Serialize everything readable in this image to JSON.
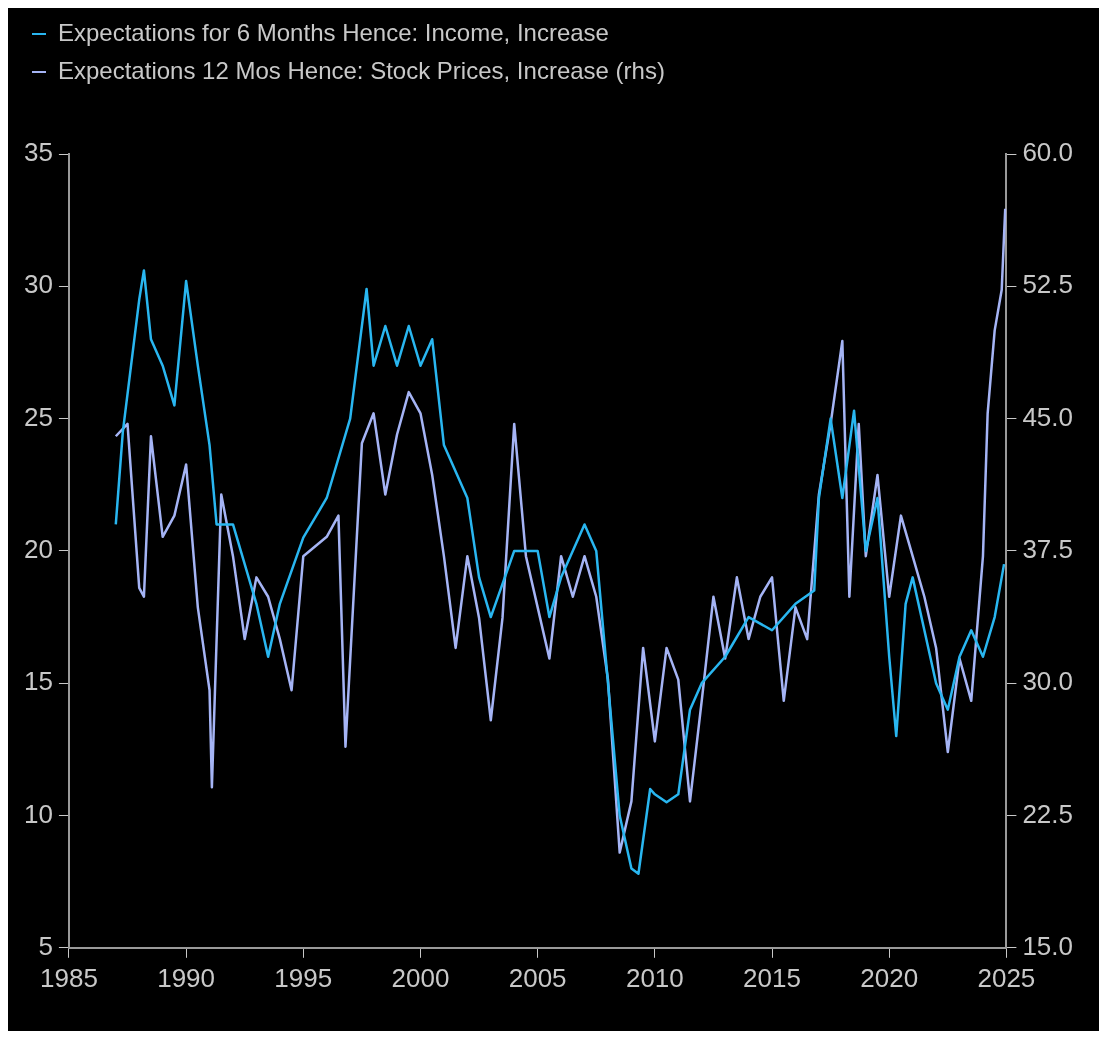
{
  "chart_data": {
    "type": "line",
    "xlim": [
      1985,
      2025
    ],
    "xticks": [
      1985,
      1990,
      1995,
      2000,
      2005,
      2010,
      2015,
      2020,
      2025
    ],
    "ylim": [
      5,
      35
    ],
    "yticks": [
      5,
      10,
      15,
      20,
      25,
      30,
      35
    ],
    "y2lim": [
      15,
      60
    ],
    "y2ticks": [
      {
        "value": 15,
        "label": "15.0"
      },
      {
        "value": 22.5,
        "label": "22.5"
      },
      {
        "value": 30,
        "label": "30.0"
      },
      {
        "value": 37.5,
        "label": "37.5"
      },
      {
        "value": 45,
        "label": "45.0"
      },
      {
        "value": 52.5,
        "label": "52.5"
      },
      {
        "value": 60,
        "label": "60.0"
      }
    ],
    "grid": false,
    "legend": "top left",
    "marker": "none",
    "line_style": "solid",
    "series": [
      {
        "name": "Expectations for 6 Months Hence: Income, Increase",
        "color": "#29b6f0",
        "x": [
          1987,
          1987.3,
          1988,
          1988.2,
          1988.5,
          1989,
          1989.5,
          1990,
          1990.5,
          1991,
          1991.3,
          1992,
          1993,
          1993.5,
          1994,
          1995,
          1996,
          1997,
          1997.7,
          1998,
          1998.5,
          1999,
          1999.5,
          2000,
          2000.5,
          2001,
          2002,
          2002.5,
          2003,
          2004,
          2005,
          2005.5,
          2006,
          2007,
          2007.5,
          2008,
          2008.5,
          2009,
          2009.3,
          2009.8,
          2010,
          2010.5,
          2011,
          2011.5,
          2012,
          2013,
          2014,
          2015,
          2016,
          2016.8,
          2017,
          2017.5,
          2018,
          2018.5,
          2019,
          2019.5,
          2020,
          2020.3,
          2020.7,
          2021,
          2021.5,
          2022,
          2022.5,
          2023,
          2023.5,
          2024,
          2024.5,
          2024.9
        ],
        "values": [
          21,
          24.5,
          29.5,
          30.6,
          28,
          27,
          25.5,
          30.2,
          27,
          24,
          21,
          21,
          18,
          16,
          18,
          20.5,
          22,
          25,
          29.9,
          27,
          28.5,
          27,
          28.5,
          27,
          28,
          24,
          22,
          19,
          17.5,
          20,
          20,
          17.5,
          19,
          21,
          20,
          15,
          10,
          8,
          7.8,
          11,
          10.8,
          10.5,
          10.8,
          14,
          15,
          16,
          17.5,
          17,
          18,
          18.5,
          22,
          25,
          22,
          25.3,
          20,
          22,
          16,
          13,
          18,
          19,
          17,
          15,
          14,
          16,
          17,
          16,
          17.5,
          19.5
        ]
      },
      {
        "name": "Expectations 12 Mos Hence: Stock Prices, Increase (rhs)",
        "color": "#a5b4f5",
        "axis": "y2",
        "x": [
          1987,
          1987.5,
          1988,
          1988.2,
          1988.5,
          1989,
          1989.5,
          1990,
          1990.5,
          1991,
          1991.1,
          1991.5,
          1992,
          1992.5,
          1993,
          1993.5,
          1994,
          1994.5,
          1995,
          1996,
          1996.5,
          1996.8,
          1997.5,
          1998,
          1998.5,
          1999,
          1999.5,
          2000,
          2000.5,
          2001,
          2001.5,
          2002,
          2002.5,
          2003,
          2003.5,
          2004,
          2004.5,
          2005,
          2005.5,
          2006,
          2006.5,
          2007,
          2007.5,
          2008,
          2008.5,
          2009,
          2009.5,
          2010,
          2010.5,
          2011,
          2011.5,
          2012,
          2012.5,
          2013,
          2013.5,
          2014,
          2014.5,
          2015,
          2015.5,
          2016,
          2016.5,
          2017,
          2017.5,
          2018,
          2018.3,
          2018.7,
          2019,
          2019.5,
          2020,
          2020.5,
          2021,
          2021.5,
          2022,
          2022.5,
          2023,
          2023.5,
          2024,
          2024.2,
          2024.5,
          2024.8,
          2024.95
        ],
        "values": [
          44,
          44.7,
          35.4,
          34.9,
          44,
          38.3,
          39.5,
          42.4,
          34.3,
          29.6,
          24.1,
          40.7,
          37.2,
          32.5,
          36,
          34.9,
          32.5,
          29.6,
          37.2,
          38.3,
          39.5,
          26.4,
          43.6,
          45.3,
          40.7,
          44.1,
          46.5,
          45.3,
          41.8,
          37.2,
          32,
          37.2,
          33.7,
          27.9,
          33.7,
          44.7,
          37.2,
          34.3,
          31.4,
          37.2,
          34.9,
          37.2,
          34.9,
          30.2,
          20.4,
          23.3,
          32,
          26.7,
          32,
          30.2,
          23.3,
          29,
          34.9,
          31.4,
          36,
          32.5,
          34.9,
          36,
          29,
          34.3,
          32.5,
          40.7,
          44.7,
          49.4,
          34.9,
          44.7,
          37.2,
          41.8,
          34.9,
          39.5,
          37.2,
          34.9,
          32,
          26.1,
          31.4,
          29,
          37.2,
          45.3,
          50,
          52.3,
          56.9
        ]
      }
    ]
  }
}
